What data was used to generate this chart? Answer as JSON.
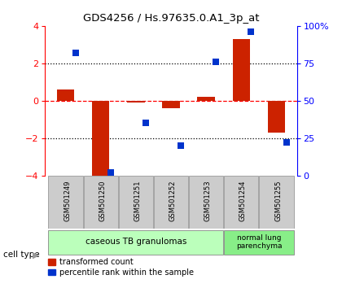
{
  "title": "GDS4256 / Hs.97635.0.A1_3p_at",
  "samples": [
    "GSM501249",
    "GSM501250",
    "GSM501251",
    "GSM501252",
    "GSM501253",
    "GSM501254",
    "GSM501255"
  ],
  "transformed_count": [
    0.6,
    -4.3,
    -0.1,
    -0.4,
    0.2,
    3.3,
    -1.7
  ],
  "percentile_rank": [
    82,
    2,
    35,
    20,
    76,
    96,
    22
  ],
  "ylim_left": [
    -4,
    4
  ],
  "ylim_right": [
    0,
    100
  ],
  "yticks_left": [
    -4,
    -2,
    0,
    2,
    4
  ],
  "yticks_right": [
    0,
    25,
    50,
    75,
    100
  ],
  "ytick_labels_right": [
    "0",
    "25",
    "50",
    "75",
    "100%"
  ],
  "bar_color": "#cc2200",
  "dot_color": "#0033cc",
  "sample_box_color": "#cccccc",
  "cell_type_colors": [
    "#bbffbb",
    "#88ee88"
  ],
  "cell_type_labels": [
    "caseous TB granulomas",
    "normal lung\nparenchyma"
  ],
  "cell_type_label": "cell type",
  "legend_bar_label": "transformed count",
  "legend_dot_label": "percentile rank within the sample",
  "background_color": "#ffffff"
}
